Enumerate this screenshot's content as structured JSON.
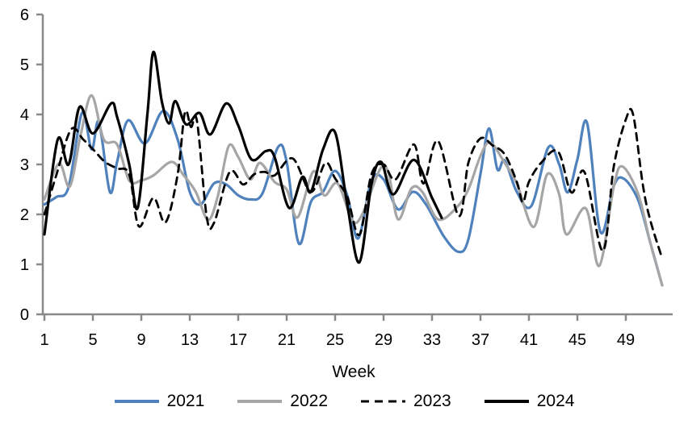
{
  "chart_data": {
    "type": "line",
    "title": "",
    "xlabel": "Week",
    "ylabel": "",
    "xlim": [
      1,
      52
    ],
    "ylim": [
      0,
      6
    ],
    "xticks": [
      1,
      5,
      9,
      13,
      17,
      21,
      25,
      29,
      33,
      37,
      41,
      45,
      49
    ],
    "yticks": [
      0,
      1,
      2,
      3,
      4,
      5,
      6
    ],
    "grid": false,
    "legend_position": "bottom",
    "axis_color": "#898989",
    "text_color": "#000000",
    "series": [
      {
        "name": "2021",
        "color": "#4F81BD",
        "style": "solid",
        "points": [
          [
            1,
            2.2
          ],
          [
            2,
            2.35
          ],
          [
            3,
            2.55
          ],
          [
            4.1,
            4.03
          ],
          [
            4.9,
            3.3
          ],
          [
            5.5,
            3.85
          ],
          [
            6.4,
            2.45
          ],
          [
            7,
            3.05
          ],
          [
            7.9,
            3.88
          ],
          [
            9.3,
            3.42
          ],
          [
            10.8,
            4.07
          ],
          [
            12,
            3.5
          ],
          [
            13,
            2.45
          ],
          [
            13.9,
            2.2
          ],
          [
            15,
            2.62
          ],
          [
            16,
            2.6
          ],
          [
            17,
            2.38
          ],
          [
            18,
            2.3
          ],
          [
            19,
            2.42
          ],
          [
            20.3,
            3.35
          ],
          [
            21,
            3.05
          ],
          [
            22,
            1.42
          ],
          [
            23,
            2.25
          ],
          [
            24,
            2.45
          ],
          [
            25,
            2.87
          ],
          [
            26,
            2.38
          ],
          [
            26.9,
            1.52
          ],
          [
            28,
            2.68
          ],
          [
            29,
            2.7
          ],
          [
            30.2,
            2.1
          ],
          [
            31.4,
            2.45
          ],
          [
            32.5,
            2.2
          ],
          [
            34,
            1.55
          ],
          [
            35.2,
            1.25
          ],
          [
            36,
            1.5
          ],
          [
            37,
            2.81
          ],
          [
            37.7,
            3.72
          ],
          [
            38.4,
            2.9
          ],
          [
            39,
            3.08
          ],
          [
            40,
            2.45
          ],
          [
            41.2,
            2.17
          ],
          [
            42.6,
            3.34
          ],
          [
            43.5,
            3.0
          ],
          [
            44.2,
            2.44
          ],
          [
            45,
            3.1
          ],
          [
            45.8,
            3.83
          ],
          [
            46.9,
            1.65
          ],
          [
            48,
            2.57
          ],
          [
            48.8,
            2.72
          ],
          [
            50,
            2.3
          ],
          [
            51,
            1.45
          ],
          [
            52,
            0.58
          ]
        ]
      },
      {
        "name": "2022",
        "color": "#A6A6A6",
        "style": "solid",
        "points": [
          [
            1,
            2.3
          ],
          [
            2.2,
            3.02
          ],
          [
            3.1,
            2.56
          ],
          [
            4,
            3.6
          ],
          [
            4.9,
            4.38
          ],
          [
            5.9,
            3.5
          ],
          [
            7,
            3.4
          ],
          [
            8,
            2.68
          ],
          [
            9,
            2.68
          ],
          [
            10,
            2.78
          ],
          [
            11.5,
            3.05
          ],
          [
            12.5,
            2.78
          ],
          [
            13.5,
            2.45
          ],
          [
            14.5,
            1.89
          ],
          [
            15.3,
            2.35
          ],
          [
            16.2,
            3.36
          ],
          [
            17,
            3.15
          ],
          [
            18,
            2.7
          ],
          [
            18.8,
            3.03
          ],
          [
            20,
            2.65
          ],
          [
            21,
            2.5
          ],
          [
            21.9,
            1.94
          ],
          [
            23.2,
            2.86
          ],
          [
            24.1,
            2.38
          ],
          [
            25.2,
            2.62
          ],
          [
            26.4,
            1.89
          ],
          [
            27.2,
            1.98
          ],
          [
            28.7,
            2.9
          ],
          [
            29.4,
            2.83
          ],
          [
            30.2,
            1.9
          ],
          [
            31.3,
            2.52
          ],
          [
            32.2,
            2.45
          ],
          [
            33.5,
            1.9
          ],
          [
            35,
            2.13
          ],
          [
            36,
            2.5
          ],
          [
            37,
            3.17
          ],
          [
            37.8,
            3.44
          ],
          [
            39,
            3.03
          ],
          [
            40,
            2.62
          ],
          [
            41.4,
            1.75
          ],
          [
            42.5,
            2.8
          ],
          [
            43.5,
            2.4
          ],
          [
            44.1,
            1.6
          ],
          [
            45.7,
            2.12
          ],
          [
            46.8,
            0.97
          ],
          [
            48,
            2.55
          ],
          [
            48.7,
            2.96
          ],
          [
            50,
            2.42
          ],
          [
            51,
            1.45
          ],
          [
            52,
            0.58
          ]
        ]
      },
      {
        "name": "2023",
        "color": "#000000",
        "style": "dashed",
        "points": [
          [
            1,
            2.0
          ],
          [
            2,
            2.8
          ],
          [
            3.2,
            3.7
          ],
          [
            4.2,
            3.5
          ],
          [
            5.1,
            3.28
          ],
          [
            6,
            3.05
          ],
          [
            7,
            2.92
          ],
          [
            8,
            2.8
          ],
          [
            8.8,
            1.76
          ],
          [
            10,
            2.33
          ],
          [
            11,
            1.84
          ],
          [
            12,
            2.8
          ],
          [
            12.6,
            4.04
          ],
          [
            13.1,
            3.75
          ],
          [
            13.6,
            3.86
          ],
          [
            14.4,
            1.95
          ],
          [
            15,
            1.83
          ],
          [
            16.3,
            2.85
          ],
          [
            17.4,
            2.6
          ],
          [
            18.3,
            2.8
          ],
          [
            19.2,
            2.85
          ],
          [
            20,
            2.78
          ],
          [
            21.5,
            3.12
          ],
          [
            23,
            2.45
          ],
          [
            24.2,
            3.03
          ],
          [
            25,
            2.72
          ],
          [
            26,
            2.35
          ],
          [
            27,
            1.59
          ],
          [
            28,
            2.8
          ],
          [
            29,
            3.0
          ],
          [
            30,
            2.7
          ],
          [
            31.5,
            3.4
          ],
          [
            32.3,
            2.62
          ],
          [
            33.5,
            3.47
          ],
          [
            35.2,
            1.97
          ],
          [
            36,
            3.03
          ],
          [
            37,
            3.52
          ],
          [
            38,
            3.38
          ],
          [
            39,
            3.2
          ],
          [
            40,
            2.65
          ],
          [
            40.5,
            2.24
          ],
          [
            41,
            2.65
          ],
          [
            42,
            3.03
          ],
          [
            43.4,
            3.26
          ],
          [
            44.5,
            2.44
          ],
          [
            45.6,
            2.84
          ],
          [
            47.1,
            1.27
          ],
          [
            48,
            2.95
          ],
          [
            49,
            3.9
          ],
          [
            49.6,
            4.0
          ],
          [
            50.4,
            2.6
          ],
          [
            51,
            1.9
          ],
          [
            52,
            1.12
          ]
        ]
      },
      {
        "name": "2024",
        "color": "#000000",
        "style": "solid",
        "points": [
          [
            1,
            1.6
          ],
          [
            2.1,
            3.5
          ],
          [
            3,
            3.0
          ],
          [
            3.9,
            4.15
          ],
          [
            5,
            3.62
          ],
          [
            6.5,
            4.22
          ],
          [
            7,
            3.95
          ],
          [
            8,
            3.0
          ],
          [
            8.7,
            2.13
          ],
          [
            9.5,
            4.0
          ],
          [
            10,
            5.25
          ],
          [
            10.7,
            4.25
          ],
          [
            11.3,
            3.82
          ],
          [
            11.8,
            4.27
          ],
          [
            12.7,
            3.8
          ],
          [
            13.8,
            4.03
          ],
          [
            14.7,
            3.6
          ],
          [
            16,
            4.22
          ],
          [
            17,
            3.78
          ],
          [
            18.1,
            3.1
          ],
          [
            19.3,
            3.27
          ],
          [
            20,
            3.15
          ],
          [
            21.2,
            2.13
          ],
          [
            22.3,
            2.75
          ],
          [
            23,
            2.45
          ],
          [
            24,
            3.3
          ],
          [
            25,
            3.64
          ],
          [
            26,
            2.2
          ],
          [
            27,
            1.04
          ],
          [
            28,
            2.6
          ],
          [
            28.8,
            3.05
          ],
          [
            29.8,
            2.4
          ],
          [
            31.5,
            3.09
          ],
          [
            33,
            2.33
          ],
          [
            33.8,
            1.93
          ]
        ]
      }
    ]
  }
}
